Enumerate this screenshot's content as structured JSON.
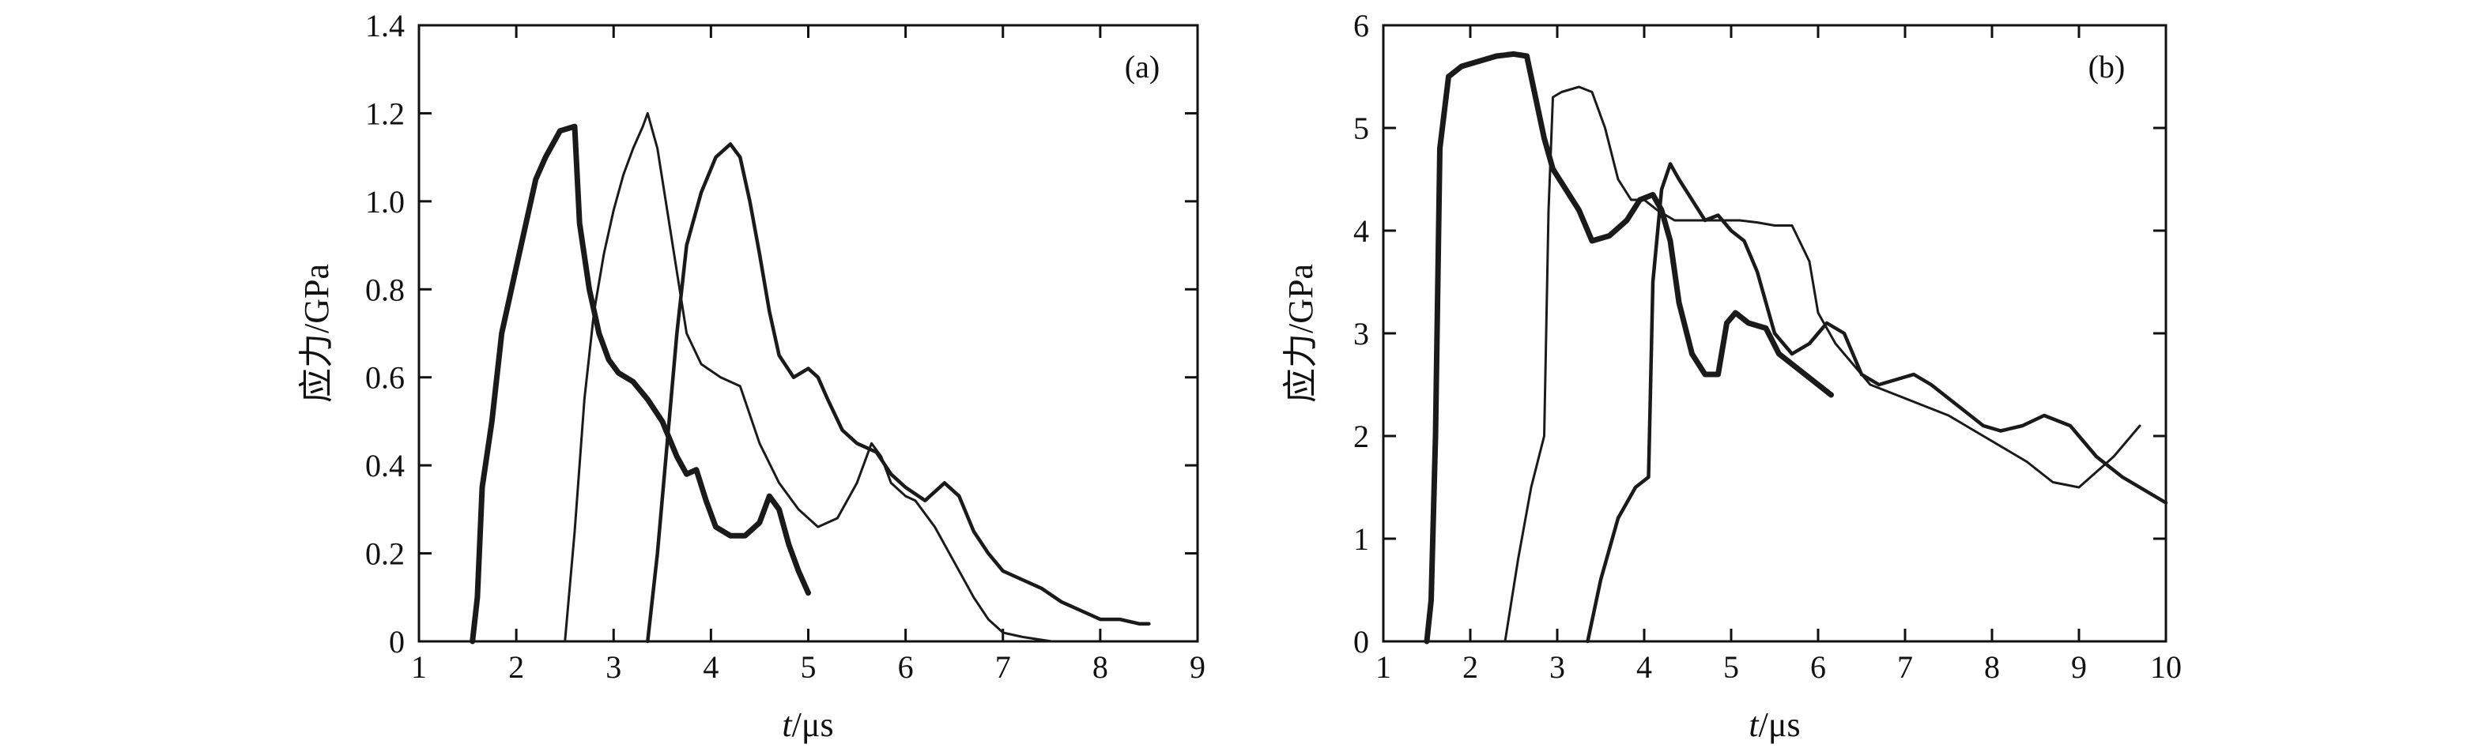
{
  "chart_data": [
    {
      "type": "line",
      "panel_label": "(a)",
      "xlabel_italic": "t",
      "xlabel_unit": "/μs",
      "ylabel": "应力/GPa",
      "xlim": [
        1,
        9
      ],
      "ylim": [
        0,
        1.4
      ],
      "xticks": [
        1,
        2,
        3,
        4,
        5,
        6,
        7,
        8,
        9
      ],
      "yticks": [
        0,
        0.2,
        0.4,
        0.6,
        0.8,
        1.0,
        1.2,
        1.4
      ],
      "ytick_labels": [
        "0",
        "0.2",
        "0.4",
        "0.6",
        "0.8",
        "1.0",
        "1.2",
        "1.4"
      ],
      "grid": false,
      "series": [
        {
          "line_weight": "thick",
          "x": [
            1.55,
            1.6,
            1.65,
            1.75,
            1.85,
            2.0,
            2.1,
            2.2,
            2.3,
            2.45,
            2.6,
            2.65,
            2.75,
            2.85,
            2.95,
            3.05,
            3.2,
            3.35,
            3.5,
            3.65,
            3.75,
            3.85,
            3.95,
            4.05,
            4.2,
            4.35,
            4.5,
            4.6,
            4.7,
            4.8,
            4.9,
            5.0
          ],
          "y": [
            0.0,
            0.1,
            0.35,
            0.5,
            0.7,
            0.85,
            0.95,
            1.05,
            1.1,
            1.16,
            1.17,
            0.95,
            0.8,
            0.7,
            0.64,
            0.61,
            0.59,
            0.55,
            0.5,
            0.42,
            0.38,
            0.39,
            0.32,
            0.26,
            0.24,
            0.24,
            0.27,
            0.33,
            0.3,
            0.22,
            0.16,
            0.11
          ]
        },
        {
          "line_weight": "thin",
          "x": [
            2.5,
            2.6,
            2.7,
            2.8,
            2.9,
            3.0,
            3.1,
            3.2,
            3.3,
            3.35,
            3.45,
            3.55,
            3.65,
            3.75,
            3.9,
            4.1,
            4.3,
            4.5,
            4.7,
            4.9,
            5.1,
            5.3,
            5.5,
            5.65,
            5.75,
            5.85,
            6.0,
            6.1,
            6.3,
            6.5,
            6.7,
            6.85,
            7.0,
            7.2,
            7.5
          ],
          "y": [
            0.0,
            0.25,
            0.55,
            0.75,
            0.88,
            0.98,
            1.06,
            1.12,
            1.17,
            1.2,
            1.12,
            0.98,
            0.84,
            0.7,
            0.63,
            0.6,
            0.58,
            0.45,
            0.36,
            0.3,
            0.26,
            0.28,
            0.36,
            0.45,
            0.42,
            0.36,
            0.33,
            0.32,
            0.26,
            0.18,
            0.1,
            0.05,
            0.02,
            0.01,
            0.0
          ]
        },
        {
          "line_weight": "medium",
          "x": [
            3.35,
            3.45,
            3.55,
            3.65,
            3.75,
            3.9,
            4.05,
            4.2,
            4.3,
            4.4,
            4.5,
            4.6,
            4.7,
            4.85,
            5.0,
            5.1,
            5.2,
            5.35,
            5.5,
            5.7,
            5.85,
            6.0,
            6.2,
            6.4,
            6.55,
            6.7,
            6.85,
            7.0,
            7.2,
            7.4,
            7.6,
            7.8,
            8.0,
            8.2,
            8.4,
            8.5
          ],
          "y": [
            0.0,
            0.2,
            0.45,
            0.7,
            0.9,
            1.02,
            1.1,
            1.13,
            1.1,
            1.0,
            0.88,
            0.75,
            0.65,
            0.6,
            0.62,
            0.6,
            0.55,
            0.48,
            0.45,
            0.43,
            0.38,
            0.35,
            0.32,
            0.36,
            0.33,
            0.25,
            0.2,
            0.16,
            0.14,
            0.12,
            0.09,
            0.07,
            0.05,
            0.05,
            0.04,
            0.04
          ]
        }
      ]
    },
    {
      "type": "line",
      "panel_label": "(b)",
      "xlabel_italic": "t",
      "xlabel_unit": "/μs",
      "ylabel": "应力/GPa",
      "xlim": [
        1,
        10
      ],
      "ylim": [
        0,
        6
      ],
      "xticks": [
        1,
        2,
        3,
        4,
        5,
        6,
        7,
        8,
        9,
        10
      ],
      "yticks": [
        0,
        1,
        2,
        3,
        4,
        5,
        6
      ],
      "ytick_labels": [
        "0",
        "1",
        "2",
        "3",
        "4",
        "5",
        "6"
      ],
      "grid": false,
      "series": [
        {
          "line_weight": "thick",
          "x": [
            1.5,
            1.55,
            1.6,
            1.65,
            1.75,
            1.9,
            2.1,
            2.3,
            2.5,
            2.65,
            2.75,
            2.85,
            2.95,
            3.1,
            3.25,
            3.4,
            3.6,
            3.8,
            3.95,
            4.1,
            4.2,
            4.3,
            4.4,
            4.55,
            4.7,
            4.85,
            4.95,
            5.05,
            5.2,
            5.4,
            5.55,
            5.7,
            5.85,
            6.0,
            6.15
          ],
          "y": [
            0.0,
            0.4,
            2.0,
            4.8,
            5.5,
            5.6,
            5.65,
            5.7,
            5.72,
            5.7,
            5.3,
            4.9,
            4.6,
            4.4,
            4.2,
            3.9,
            3.95,
            4.1,
            4.3,
            4.35,
            4.2,
            3.9,
            3.3,
            2.8,
            2.6,
            2.6,
            3.1,
            3.2,
            3.1,
            3.05,
            2.8,
            2.7,
            2.6,
            2.5,
            2.4
          ]
        },
        {
          "line_weight": "thin",
          "x": [
            2.4,
            2.55,
            2.7,
            2.85,
            2.9,
            2.95,
            3.05,
            3.25,
            3.4,
            3.55,
            3.7,
            3.85,
            4.0,
            4.15,
            4.35,
            4.55,
            4.75,
            4.95,
            5.1,
            5.3,
            5.5,
            5.7,
            5.9,
            6.0,
            6.2,
            6.4,
            6.6,
            6.9,
            7.2,
            7.5,
            7.8,
            8.1,
            8.4,
            8.7,
            9.0,
            9.4,
            9.7
          ],
          "y": [
            0.0,
            0.8,
            1.5,
            2.0,
            4.2,
            5.3,
            5.35,
            5.4,
            5.35,
            5.0,
            4.5,
            4.3,
            4.3,
            4.2,
            4.1,
            4.1,
            4.1,
            4.1,
            4.1,
            4.08,
            4.05,
            4.05,
            3.7,
            3.2,
            2.9,
            2.7,
            2.5,
            2.4,
            2.3,
            2.2,
            2.05,
            1.9,
            1.75,
            1.55,
            1.5,
            1.8,
            2.1
          ]
        },
        {
          "line_weight": "medium",
          "x": [
            3.35,
            3.5,
            3.7,
            3.9,
            4.05,
            4.1,
            4.2,
            4.3,
            4.4,
            4.55,
            4.7,
            4.85,
            5.0,
            5.15,
            5.3,
            5.5,
            5.7,
            5.9,
            6.1,
            6.3,
            6.5,
            6.7,
            6.9,
            7.1,
            7.3,
            7.6,
            7.9,
            8.1,
            8.35,
            8.6,
            8.9,
            9.2,
            9.5,
            9.8,
            10.0
          ],
          "y": [
            0.0,
            0.6,
            1.2,
            1.5,
            1.6,
            3.5,
            4.4,
            4.65,
            4.5,
            4.3,
            4.1,
            4.15,
            4.0,
            3.9,
            3.6,
            3.0,
            2.8,
            2.9,
            3.1,
            3.0,
            2.6,
            2.5,
            2.55,
            2.6,
            2.5,
            2.3,
            2.1,
            2.05,
            2.1,
            2.2,
            2.1,
            1.8,
            1.6,
            1.45,
            1.35
          ]
        }
      ]
    }
  ]
}
